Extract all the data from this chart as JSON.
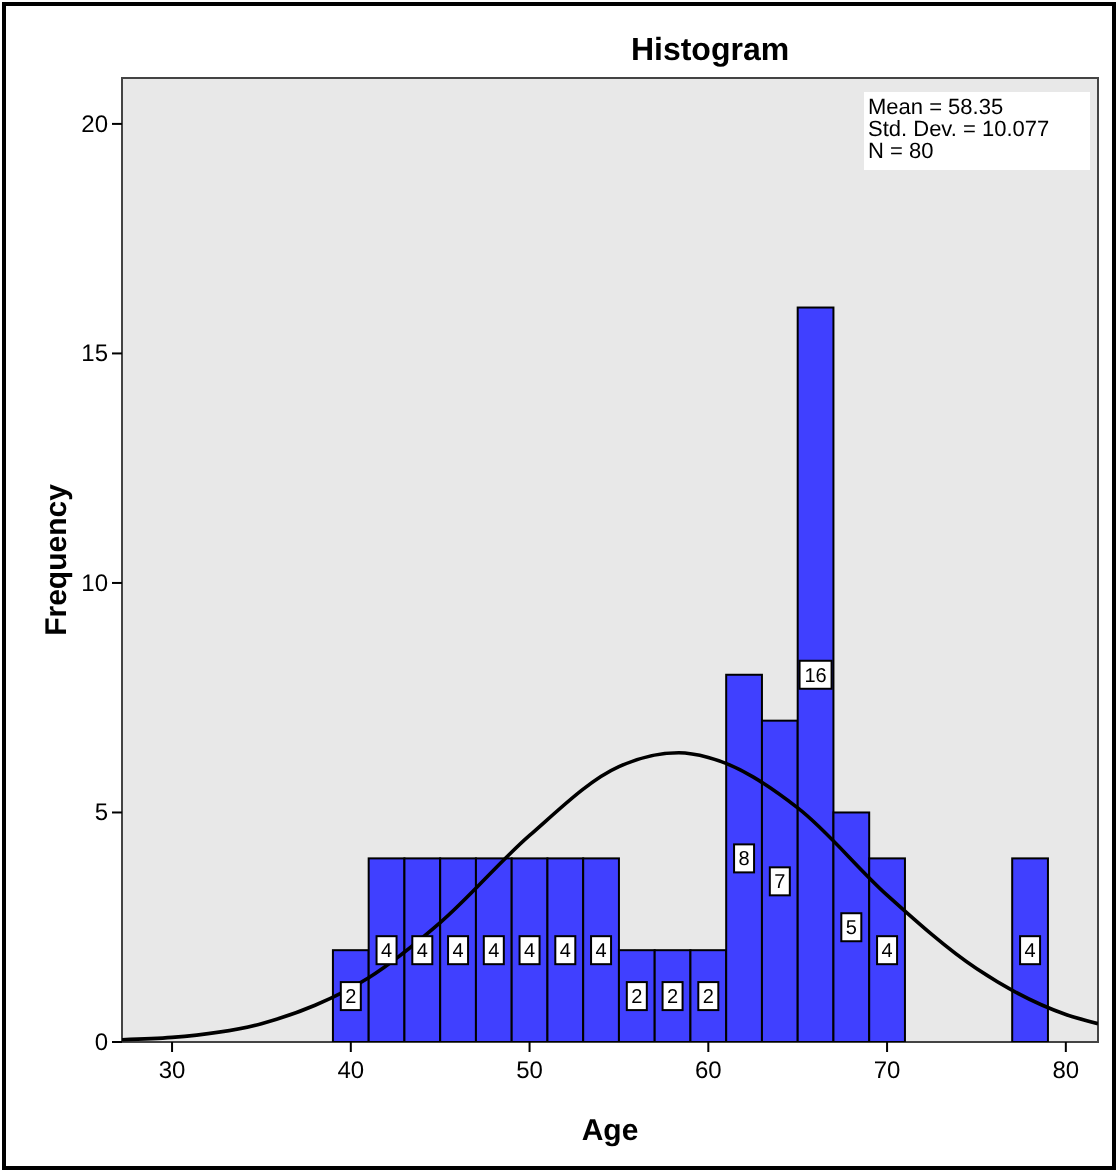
{
  "chart_data": {
    "type": "histogram",
    "title": "Histogram",
    "xlabel": "Age",
    "ylabel": "Frequency",
    "bins": [
      39,
      41,
      43,
      45,
      47,
      49,
      51,
      53,
      55,
      57,
      59,
      61,
      63,
      65,
      67,
      69,
      71,
      73,
      75,
      77,
      79
    ],
    "values": [
      2,
      4,
      4,
      4,
      4,
      4,
      4,
      4,
      2,
      2,
      2,
      8,
      7,
      16,
      5,
      4,
      0,
      0,
      0,
      4
    ],
    "value_labels": [
      "2",
      "4",
      "4",
      "4",
      "4",
      "4",
      "4",
      "4",
      "2",
      "2",
      "2",
      "8",
      "7",
      "16",
      "5",
      "4",
      null,
      null,
      null,
      "4"
    ],
    "color": "#4040ff",
    "series": [
      {
        "type": "line",
        "color": "#000000",
        "x": [
          27.2,
          30,
          35,
          38,
          41,
          45,
          50,
          55,
          58.35,
          60,
          65,
          70,
          75,
          80,
          81.8
        ],
        "values": [
          0.05,
          0.1,
          0.4,
          0.8,
          1.4,
          2.6,
          4.5,
          6.0,
          6.3,
          6.2,
          5.1,
          3.2,
          1.6,
          0.6,
          0.4
        ]
      }
    ],
    "annotations": [
      "Mean = 58.35",
      "Std. Dev. = 10.077",
      "N = 80"
    ],
    "xlim": [
      27.2,
      81.8
    ],
    "ylim": [
      0,
      21
    ],
    "xticks": [
      30,
      40,
      50,
      60,
      70,
      80
    ],
    "yticks": [
      0,
      5,
      10,
      15,
      20
    ],
    "grid": false,
    "legend": false
  }
}
